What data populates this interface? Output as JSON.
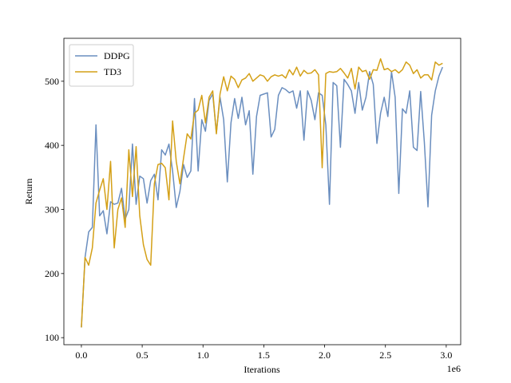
{
  "chart_data": {
    "type": "line",
    "xlabel": "Iterations",
    "ylabel": "Return",
    "x_offset_label": "1e6",
    "x": [
      0,
      0.03,
      0.06,
      0.09,
      0.12,
      0.15,
      0.18,
      0.21,
      0.24,
      0.27,
      0.3,
      0.33,
      0.36,
      0.39,
      0.42,
      0.45,
      0.48,
      0.51,
      0.54,
      0.57,
      0.6,
      0.63,
      0.66,
      0.69,
      0.72,
      0.75,
      0.78,
      0.81,
      0.84,
      0.87,
      0.9,
      0.93,
      0.96,
      0.99,
      1.02,
      1.05,
      1.08,
      1.11,
      1.14,
      1.17,
      1.2,
      1.23,
      1.26,
      1.29,
      1.32,
      1.35,
      1.38,
      1.41,
      1.44,
      1.47,
      1.5,
      1.53,
      1.56,
      1.59,
      1.62,
      1.65,
      1.68,
      1.71,
      1.74,
      1.77,
      1.8,
      1.83,
      1.86,
      1.89,
      1.92,
      1.95,
      1.98,
      2.01,
      2.04,
      2.07,
      2.1,
      2.13,
      2.16,
      2.19,
      2.22,
      2.25,
      2.28,
      2.31,
      2.34,
      2.37,
      2.4,
      2.43,
      2.46,
      2.49,
      2.52,
      2.55,
      2.58,
      2.61,
      2.64,
      2.67,
      2.7,
      2.73,
      2.76,
      2.79,
      2.82,
      2.85,
      2.88,
      2.91,
      2.94,
      2.97
    ],
    "series": [
      {
        "name": "DDPG",
        "color": "#6a8ebf",
        "values": [
          116,
          225,
          265,
          272,
          432,
          290,
          298,
          262,
          312,
          308,
          310,
          333,
          285,
          300,
          402,
          308,
          352,
          348,
          310,
          345,
          355,
          315,
          393,
          385,
          402,
          360,
          303,
          328,
          370,
          350,
          360,
          473,
          360,
          440,
          422,
          470,
          480,
          420,
          475,
          440,
          343,
          435,
          473,
          442,
          475,
          432,
          454,
          355,
          445,
          478,
          480,
          482,
          413,
          425,
          478,
          490,
          487,
          482,
          485,
          458,
          485,
          408,
          485,
          470,
          440,
          482,
          478,
          432,
          308,
          498,
          493,
          397,
          503,
          495,
          485,
          450,
          498,
          455,
          475,
          515,
          495,
          403,
          450,
          475,
          445,
          515,
          475,
          325,
          457,
          450,
          485,
          397,
          392,
          484,
          405,
          304,
          447,
          485,
          508,
          522
        ]
      },
      {
        "name": "TD3",
        "color": "#d4a017",
        "values": [
          116,
          225,
          213,
          240,
          310,
          330,
          348,
          300,
          375,
          240,
          300,
          318,
          272,
          393,
          320,
          398,
          290,
          245,
          222,
          213,
          340,
          370,
          372,
          365,
          315,
          438,
          375,
          340,
          380,
          418,
          410,
          450,
          455,
          478,
          435,
          475,
          485,
          418,
          480,
          507,
          485,
          508,
          503,
          490,
          502,
          505,
          512,
          500,
          505,
          510,
          508,
          500,
          507,
          510,
          508,
          510,
          505,
          518,
          510,
          522,
          508,
          517,
          512,
          513,
          518,
          510,
          365,
          512,
          515,
          514,
          515,
          520,
          513,
          505,
          520,
          488,
          522,
          515,
          517,
          503,
          518,
          517,
          535,
          518,
          520,
          515,
          518,
          513,
          518,
          530,
          525,
          512,
          518,
          505,
          510,
          510,
          502,
          530,
          525,
          528
        ]
      }
    ],
    "xlim": [
      -0.144,
      3.119
    ],
    "ylim": [
      89,
      567
    ],
    "xticks": [
      {
        "value": 0,
        "label": "0.0"
      },
      0.5,
      {
        "value": 1,
        "label": "1.0"
      },
      1.5,
      {
        "value": 2,
        "label": "2.0"
      },
      2.5,
      {
        "value": 3,
        "label": "3.0"
      }
    ],
    "yticks": [
      100,
      200,
      300,
      400,
      500
    ],
    "grid": false,
    "legend": "upper left"
  }
}
